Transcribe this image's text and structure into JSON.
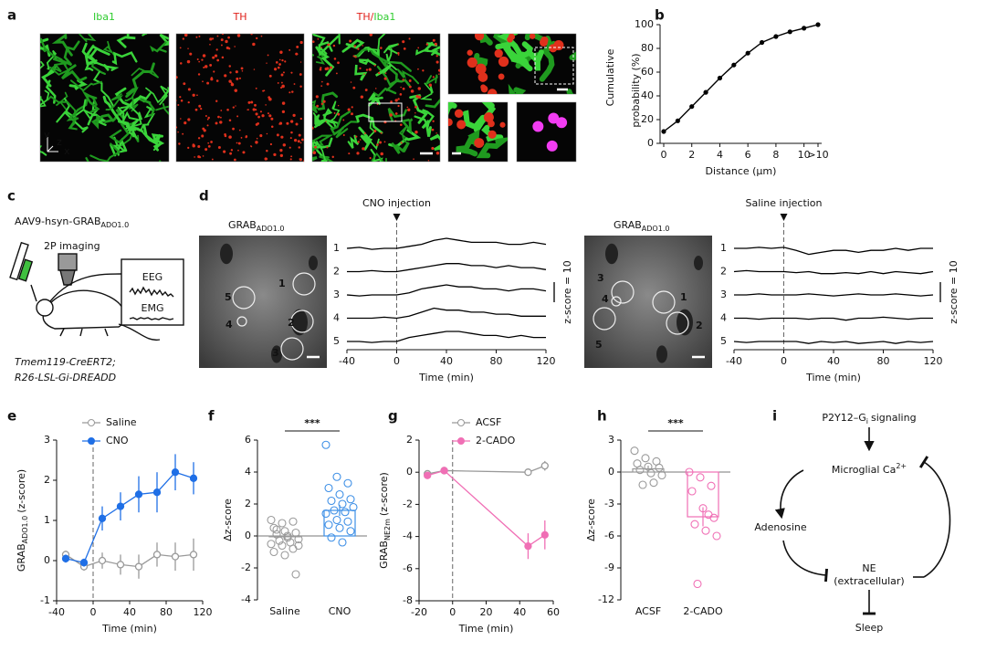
{
  "panel_a": {
    "label": "a",
    "titles": [
      [
        {
          "text": "Iba1",
          "color": "#2ecc2e"
        }
      ],
      [
        {
          "text": "TH",
          "color": "#e0201a"
        }
      ],
      [
        {
          "text": "TH",
          "color": "#e0201a"
        },
        {
          "text": "/",
          "color": "#e0201a"
        },
        {
          "text": "Iba1",
          "color": "#2ecc2e"
        }
      ]
    ],
    "axes": [
      "y",
      "z",
      "x"
    ]
  },
  "panel_c": {
    "label": "c",
    "virus": "AAV9-hsyn-GRAB",
    "virus_sub": "ADO1.0",
    "imaging": "2P imaging",
    "eeg": "EEG",
    "emg": "EMG",
    "genotype": [
      "Tmem119-CreERT2;",
      "R26-LSL-Gi-DREADD"
    ]
  },
  "panel_i": {
    "label": "i",
    "p2y12": "P2Y12–G",
    "p2y12_sub": "i",
    "p2y12_suffix": "signaling",
    "calcium": "Microglial Ca",
    "calcium_sup": "2+",
    "adenosine": "Adenosine",
    "ne": "NE",
    "ne_note": "(extracellular)",
    "sleep": "Sleep"
  },
  "chart_data": [
    {
      "type": "line",
      "label": "b",
      "ylabel": [
        "Cumulative",
        "probability (%)"
      ],
      "xlabel": "Distance (μm)",
      "color": "#000000",
      "categories": [
        "0",
        null,
        "2",
        null,
        "4",
        null,
        "6",
        null,
        "8",
        null,
        "10",
        ">10"
      ],
      "values": [
        10,
        19,
        31,
        43,
        55,
        66,
        76,
        85,
        90,
        94,
        97,
        100
      ],
      "ylim": [
        0,
        100
      ],
      "yticks": [
        0,
        20,
        40,
        60,
        80,
        100
      ]
    },
    {
      "type": "traces",
      "label": "d",
      "image_label": "GRAB",
      "image_label_sub": "ADO1.0",
      "annotation": "CNO injection",
      "roi_labels": [
        "1",
        "2",
        "3",
        "4",
        "5"
      ],
      "xlabel": "Time (min)",
      "xlim": [
        -40,
        120
      ],
      "xticks": [
        -40,
        0,
        40,
        80,
        120
      ],
      "scale_label": "z-score = 10",
      "scale_value": 10,
      "event_x": 0,
      "color": "#000000",
      "x": [
        -40,
        -30,
        -20,
        -10,
        0,
        10,
        20,
        30,
        40,
        50,
        60,
        70,
        80,
        90,
        100,
        110,
        120
      ],
      "series": [
        {
          "name": "1",
          "values": [
            0,
            0.5,
            -0.5,
            0,
            0,
            1,
            2,
            4,
            5,
            4,
            3,
            3,
            3,
            2,
            2,
            3,
            2
          ]
        },
        {
          "name": "2",
          "values": [
            0,
            0,
            0.5,
            0,
            0,
            1,
            2,
            3,
            4,
            4,
            3,
            3,
            2,
            3,
            2,
            2,
            1
          ]
        },
        {
          "name": "3",
          "values": [
            0,
            -0.5,
            0,
            0,
            0,
            1,
            3,
            4,
            5,
            4,
            4,
            3,
            3,
            2,
            3,
            3,
            2
          ]
        },
        {
          "name": "4",
          "values": [
            0,
            0,
            0,
            0.5,
            0,
            1,
            3,
            5,
            4,
            4,
            3,
            3,
            2,
            2,
            1,
            1,
            1
          ]
        },
        {
          "name": "5",
          "values": [
            0,
            0,
            -0.5,
            0,
            0,
            2,
            3,
            4,
            5,
            5,
            4,
            3,
            3,
            2,
            3,
            2,
            2
          ]
        }
      ]
    },
    {
      "type": "traces",
      "image_label": "GRAB",
      "image_label_sub": "ADO1.0",
      "annotation": "Saline injection",
      "roi_labels": [
        "1",
        "2",
        "3",
        "4",
        "5"
      ],
      "xlabel": "Time (min)",
      "xlim": [
        -40,
        120
      ],
      "xticks": [
        -40,
        0,
        40,
        80,
        120
      ],
      "scale_label": "z-score = 10",
      "scale_value": 10,
      "event_x": 0,
      "color": "#000000",
      "x": [
        -40,
        -30,
        -20,
        -10,
        0,
        10,
        20,
        30,
        40,
        50,
        60,
        70,
        80,
        90,
        100,
        110,
        120
      ],
      "series": [
        {
          "name": "1",
          "values": [
            0,
            0,
            0.5,
            0,
            0.5,
            -1,
            -3,
            -2,
            -1,
            -1,
            -2,
            -1,
            -1,
            0,
            -1,
            0,
            0
          ]
        },
        {
          "name": "2",
          "values": [
            0,
            0.5,
            0,
            0,
            0,
            -0.5,
            0,
            -1,
            -1,
            -0.5,
            -1,
            0,
            -1,
            0,
            -0.5,
            -1,
            0
          ]
        },
        {
          "name": "3",
          "values": [
            0,
            0,
            0.5,
            0,
            0,
            0,
            0.5,
            0,
            -0.5,
            0,
            0.5,
            0,
            0,
            0.5,
            0,
            -0.5,
            0
          ]
        },
        {
          "name": "4",
          "values": [
            0,
            0,
            -0.5,
            0,
            0,
            0,
            -0.5,
            0,
            0,
            -1,
            0,
            0,
            0.5,
            0,
            -0.5,
            0,
            0
          ]
        },
        {
          "name": "5",
          "values": [
            0,
            -0.5,
            0,
            0,
            0,
            0,
            -1,
            0,
            -0.5,
            0,
            -1,
            -0.5,
            0,
            -1,
            0,
            -0.5,
            0
          ]
        }
      ]
    },
    {
      "type": "errorline",
      "label": "e",
      "ylabel": "GRAB",
      "ylabel_sub": "ADO1.0",
      "ylabel_suffix": "(z-score)",
      "xlabel": "Time (min)",
      "xlim": [
        -40,
        120
      ],
      "xticks": [
        -40,
        0,
        40,
        80,
        120
      ],
      "ylim": [
        -1,
        3
      ],
      "yticks": [
        -1,
        0,
        1,
        2,
        3
      ],
      "event_x": 0,
      "x": [
        -30,
        -10,
        10,
        30,
        50,
        70,
        90,
        110
      ],
      "series": [
        {
          "name": "Saline",
          "color": "#999999",
          "marker": "open",
          "values": [
            0.15,
            -0.15,
            0,
            -0.1,
            -0.15,
            0.15,
            0.1,
            0.15
          ],
          "errors": [
            0.1,
            0.1,
            0.2,
            0.25,
            0.3,
            0.3,
            0.35,
            0.4
          ]
        },
        {
          "name": "CNO",
          "color": "#1f6fe6",
          "marker": "filled",
          "values": [
            0.05,
            -0.05,
            1.05,
            1.35,
            1.65,
            1.7,
            2.2,
            2.05
          ],
          "errors": [
            0.1,
            0.1,
            0.3,
            0.35,
            0.45,
            0.5,
            0.45,
            0.4
          ]
        }
      ]
    },
    {
      "type": "bardots",
      "label": "f",
      "ylabel": "Δz-score",
      "significance": "***",
      "categories": [
        "Saline",
        "CNO"
      ],
      "colors": [
        "#999999",
        "#3d8fe6"
      ],
      "values": [
        -0.05,
        1.6
      ],
      "errors": [
        0.2,
        0.35
      ],
      "points": [
        [
          1.0,
          0.8,
          0.9,
          0.5,
          0.3,
          0.2,
          0.1,
          0,
          -0.2,
          -0.3,
          -0.4,
          -0.5,
          -0.6,
          -0.8,
          -1.0,
          -1.2,
          -2.4,
          0.4,
          -0.1,
          -0.6
        ],
        [
          5.7,
          3.7,
          3.3,
          3.0,
          2.6,
          2.3,
          2.2,
          2.0,
          1.8,
          1.6,
          1.5,
          1.4,
          1.0,
          0.9,
          0.7,
          0.5,
          0.3,
          -0.1,
          -0.4
        ]
      ],
      "ylim": [
        -4,
        6
      ],
      "yticks": [
        -4,
        -2,
        0,
        2,
        4,
        6
      ]
    },
    {
      "type": "errorline",
      "label": "g",
      "ylabel": "GRAB",
      "ylabel_sub": "NE2m",
      "ylabel_suffix": "(z-score)",
      "xlabel": "Time (min)",
      "xlim": [
        -20,
        60
      ],
      "xticks": [
        -20,
        0,
        20,
        40,
        60
      ],
      "ylim": [
        -8,
        2
      ],
      "yticks": [
        -8,
        -6,
        -4,
        -2,
        0,
        2
      ],
      "event_x": 0,
      "x": [
        -15,
        -5,
        45,
        55
      ],
      "series": [
        {
          "name": "ACSF",
          "color": "#999999",
          "marker": "open",
          "values": [
            -0.1,
            0.1,
            0,
            0.4
          ],
          "errors": [
            0.1,
            0.1,
            0.15,
            0.3
          ]
        },
        {
          "name": "2-CADO",
          "color": "#f06fb5",
          "marker": "filled",
          "values": [
            -0.2,
            0.1,
            -4.6,
            -3.9
          ],
          "errors": [
            0.1,
            0.1,
            0.8,
            0.9
          ]
        }
      ]
    },
    {
      "type": "bardots",
      "label": "h",
      "ylabel": "Δz-score",
      "significance": "***",
      "categories": [
        "ACSF",
        "2-CADO"
      ],
      "colors": [
        "#999999",
        "#f06fb5"
      ],
      "values": [
        0.3,
        -4.2
      ],
      "errors": [
        0.3,
        0.9
      ],
      "points": [
        [
          2.0,
          1.3,
          1.0,
          0.8,
          0.5,
          0.4,
          0.2,
          -0.1,
          -0.3,
          -1.2,
          -1.0
        ],
        [
          0,
          -0.5,
          -1.3,
          -1.8,
          -3.4,
          -4.3,
          -4.9,
          -5.5,
          -6.0,
          -10.5,
          -4.0
        ]
      ],
      "ylim": [
        -12,
        3
      ],
      "yticks": [
        -12,
        -9,
        -6,
        -3,
        0,
        3
      ]
    }
  ]
}
